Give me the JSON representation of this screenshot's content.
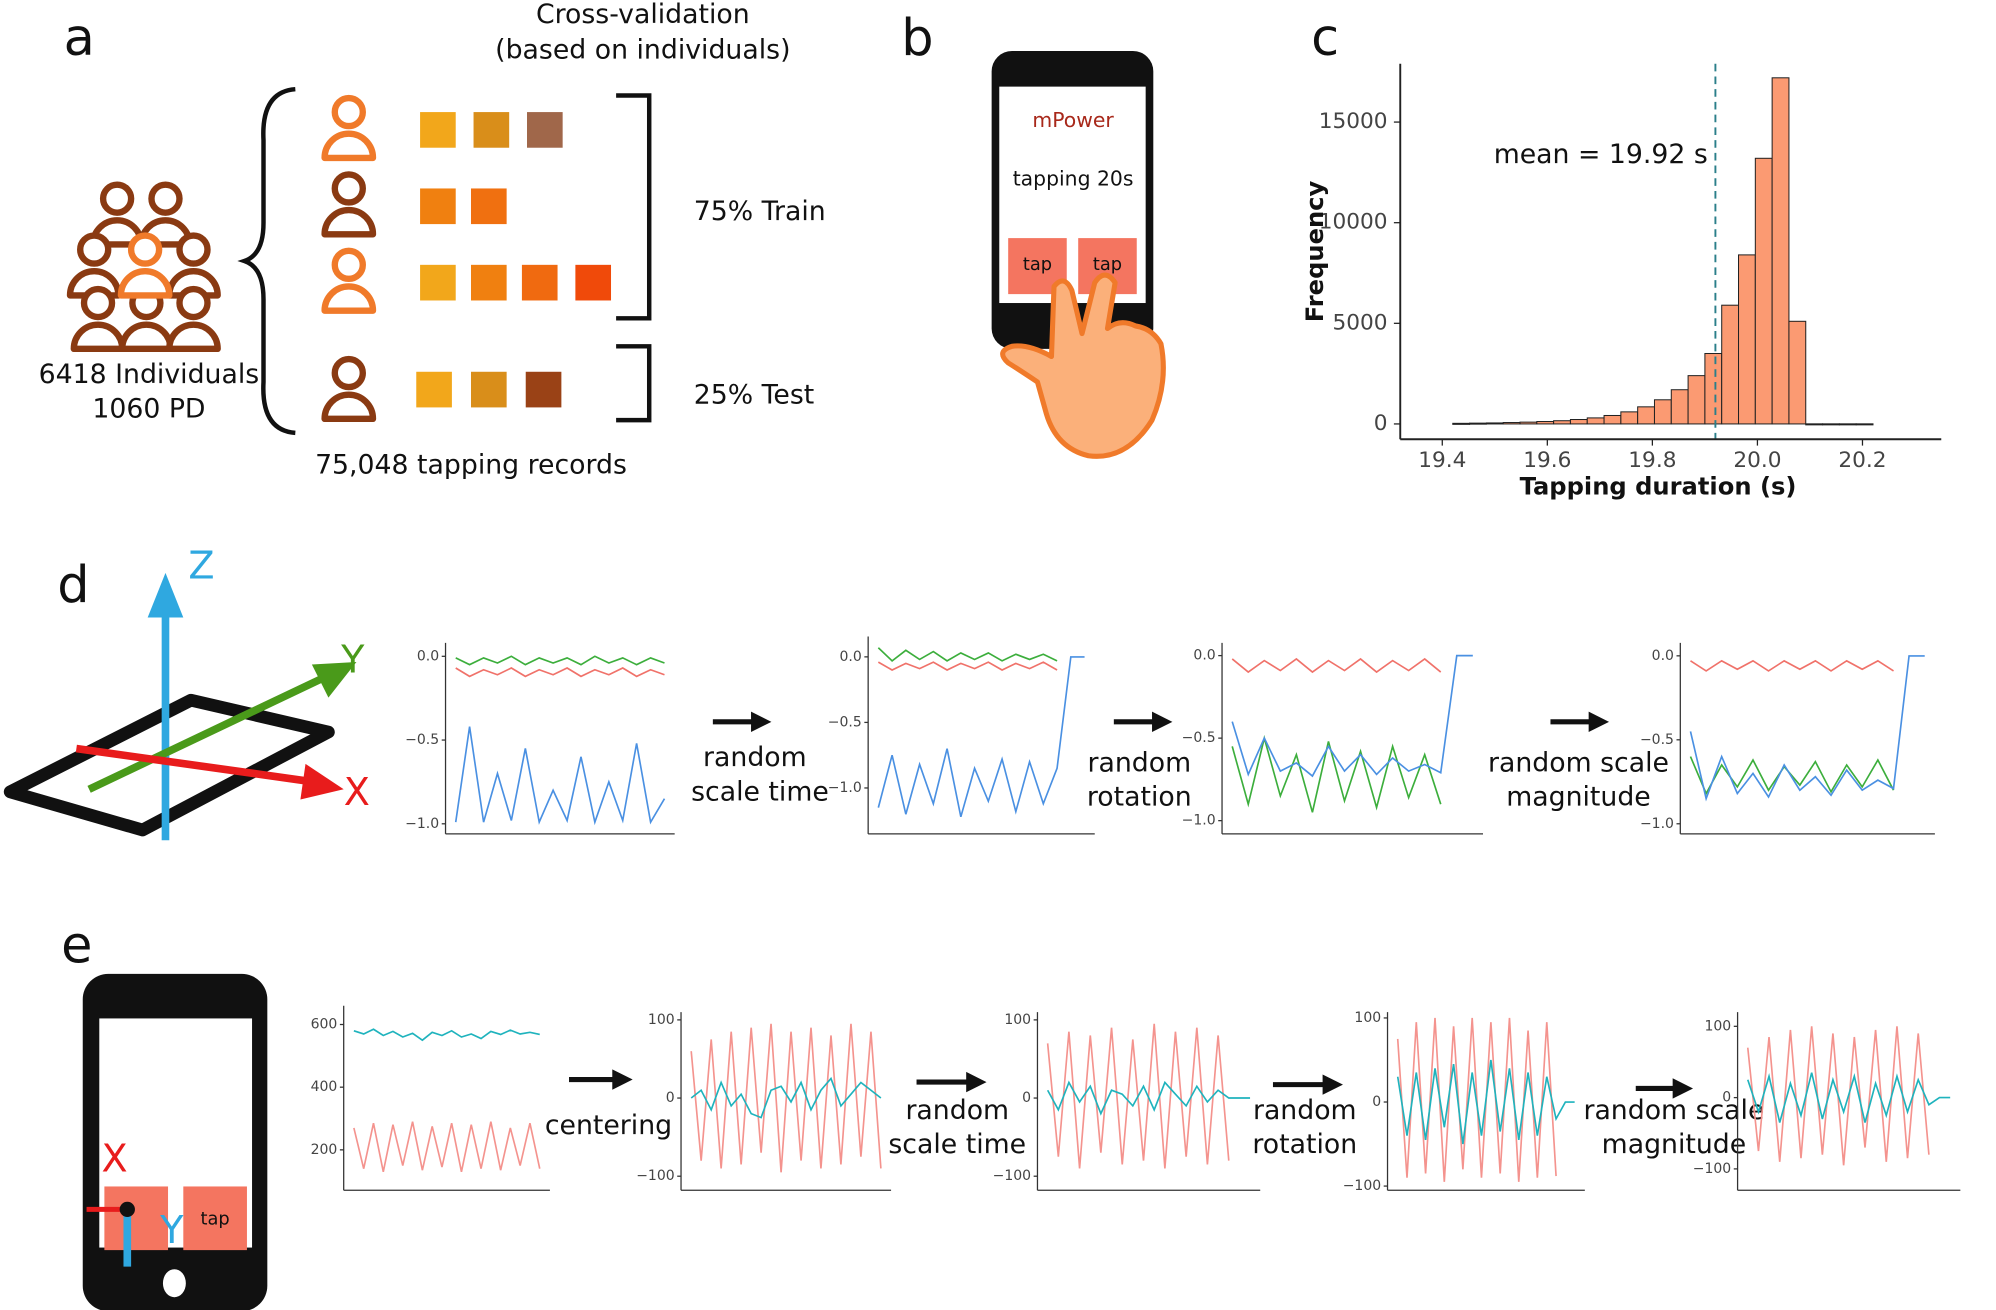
{
  "panels": {
    "a": {
      "label": "a",
      "cv_title": [
        "Cross-validation",
        "(based on individuals)"
      ],
      "train": "75% Train",
      "test": "25% Test",
      "individuals": [
        "6418 Individuals",
        "1060 PD"
      ],
      "records": "75,048 tapping records"
    },
    "b": {
      "label": "b",
      "app": "mPower",
      "task": "tapping 20s",
      "buttons": [
        "tap",
        "tap"
      ]
    },
    "c": {
      "label": "c"
    },
    "d": {
      "label": "d",
      "axes": [
        "Z",
        "Y",
        "X"
      ],
      "steps": [
        [
          "random",
          "scale time"
        ],
        [
          "random",
          "rotation"
        ],
        [
          "random scale",
          "magnitude"
        ]
      ]
    },
    "e": {
      "label": "e",
      "axes": [
        "X",
        "Y"
      ],
      "button": "tap",
      "steps": [
        [
          "centering"
        ],
        [
          "random",
          "scale time"
        ],
        [
          "random",
          "rotation"
        ],
        [
          "random scale",
          "magnitude"
        ]
      ]
    }
  },
  "chart_data": [
    {
      "type": "histogram",
      "xlabel": "Tapping duration (s)",
      "ylabel": "Frequency",
      "color": "#fb9a72",
      "bins": [
        19.42,
        19.452,
        19.484,
        19.516,
        19.548,
        19.58,
        19.612,
        19.644,
        19.676,
        19.708,
        19.74,
        19.772,
        19.804,
        19.836,
        19.868,
        19.9,
        19.932,
        19.964,
        19.996,
        20.028,
        20.06,
        20.092,
        20.124,
        20.156,
        20.188,
        20.22
      ],
      "values": [
        30,
        40,
        50,
        70,
        90,
        120,
        160,
        220,
        300,
        420,
        600,
        850,
        1200,
        1700,
        2400,
        3500,
        5900,
        8400,
        13200,
        17200,
        5100,
        5,
        5,
        5,
        5
      ],
      "xlim": [
        19.32,
        20.35
      ],
      "xticks": [
        19.4,
        19.6,
        19.8,
        {
          "value": 20,
          "label": "20.0"
        },
        20.2
      ],
      "ylim": [
        -760,
        17900
      ],
      "yticks": [
        0,
        5000,
        10000,
        15000
      ],
      "mean": 19.92,
      "mean_color": "#2a7f8a",
      "annotation": "mean = 19.92 s"
    },
    {
      "type": "line",
      "ylim": [
        -1.06,
        0.08
      ],
      "yticks": [
        {
          "value": 0,
          "label": "0.0"
        },
        {
          "value": -0.5,
          "label": "−0.5"
        },
        {
          "value": -1,
          "label": "−1.0"
        }
      ],
      "series": [
        {
          "color": "#4a90e2",
          "values": [
            -0.99,
            -0.42,
            -0.99,
            -0.7,
            -0.98,
            -0.55,
            -0.99,
            -0.8,
            -0.98,
            -0.6,
            -0.99,
            -0.75,
            -0.98,
            -0.52,
            -0.99,
            -0.85
          ]
        },
        {
          "color": "#f0726a",
          "values": [
            -0.07,
            -0.12,
            -0.08,
            -0.11,
            -0.07,
            -0.12,
            -0.08,
            -0.11,
            -0.07,
            -0.12,
            -0.08,
            -0.11,
            -0.07,
            -0.12,
            -0.08,
            -0.11
          ]
        },
        {
          "color": "#3cae3c",
          "values": [
            -0.01,
            -0.05,
            -0.01,
            -0.04,
            0.0,
            -0.05,
            -0.01,
            -0.04,
            -0.01,
            -0.05,
            0.0,
            -0.04,
            -0.01,
            -0.05,
            -0.01,
            -0.04
          ]
        }
      ]
    },
    {
      "type": "line",
      "ylim": [
        -1.35,
        0.155
      ],
      "yticks": [
        {
          "value": 0,
          "label": "0.0"
        },
        {
          "value": -0.5,
          "label": "−0.5"
        },
        {
          "value": -1,
          "label": "−1.0"
        }
      ],
      "series": [
        {
          "color": "#4a90e2",
          "values": [
            -1.15,
            -0.75,
            -1.2,
            -0.82,
            -1.12,
            -0.7,
            -1.22,
            -0.85,
            -1.1,
            -0.78,
            -1.18,
            -0.8,
            -1.12,
            -0.85,
            0.0,
            0.0
          ]
        },
        {
          "color": "#f0726a",
          "values": [
            -0.04,
            -0.1,
            -0.05,
            -0.09,
            -0.04,
            -0.1,
            -0.05,
            -0.09,
            -0.04,
            -0.1,
            -0.05,
            -0.09,
            -0.04,
            -0.1,
            null,
            null
          ]
        },
        {
          "color": "#3cae3c",
          "values": [
            0.07,
            -0.03,
            0.05,
            -0.02,
            0.04,
            -0.03,
            0.03,
            -0.02,
            0.03,
            -0.03,
            0.02,
            -0.02,
            0.02,
            -0.03,
            null,
            null
          ]
        }
      ]
    },
    {
      "type": "line",
      "ylim": [
        -1.08,
        0.077
      ],
      "yticks": [
        {
          "value": 0,
          "label": "0.0"
        },
        {
          "value": -0.5,
          "label": "−0.5"
        },
        {
          "value": -1,
          "label": "−1.0"
        }
      ],
      "series": [
        {
          "color": "#3cae3c",
          "values": [
            -0.55,
            -0.9,
            -0.5,
            -0.85,
            -0.6,
            -0.95,
            -0.52,
            -0.88,
            -0.58,
            -0.92,
            -0.55,
            -0.86,
            -0.6,
            -0.9,
            null,
            null
          ]
        },
        {
          "color": "#4a90e2",
          "values": [
            -0.4,
            -0.72,
            -0.5,
            -0.7,
            -0.65,
            -0.73,
            -0.55,
            -0.7,
            -0.6,
            -0.72,
            -0.62,
            -0.7,
            -0.66,
            -0.71,
            0.0,
            0.0
          ]
        },
        {
          "color": "#f0726a",
          "values": [
            -0.02,
            -0.1,
            -0.03,
            -0.09,
            -0.02,
            -0.1,
            -0.03,
            -0.09,
            -0.02,
            -0.1,
            -0.03,
            -0.09,
            -0.02,
            -0.1,
            null,
            null
          ]
        }
      ]
    },
    {
      "type": "line",
      "ylim": [
        -1.06,
        0.077
      ],
      "yticks": [
        {
          "value": 0,
          "label": "0.0"
        },
        {
          "value": -0.5,
          "label": "−0.5"
        },
        {
          "value": -1,
          "label": "−1.0"
        }
      ],
      "series": [
        {
          "color": "#3cae3c",
          "values": [
            -0.6,
            -0.82,
            -0.65,
            -0.78,
            -0.62,
            -0.8,
            -0.66,
            -0.77,
            -0.63,
            -0.81,
            -0.65,
            -0.78,
            -0.62,
            -0.8,
            null,
            null
          ]
        },
        {
          "color": "#4a90e2",
          "values": [
            -0.45,
            -0.85,
            -0.6,
            -0.82,
            -0.7,
            -0.84,
            -0.65,
            -0.8,
            -0.72,
            -0.83,
            -0.68,
            -0.8,
            -0.74,
            -0.79,
            0.0,
            0.0
          ]
        },
        {
          "color": "#f0726a",
          "values": [
            -0.03,
            -0.09,
            -0.03,
            -0.08,
            -0.03,
            -0.09,
            -0.03,
            -0.08,
            -0.03,
            -0.09,
            -0.03,
            -0.08,
            -0.03,
            -0.09,
            null,
            null
          ]
        }
      ]
    },
    {
      "type": "line",
      "ylim": [
        71,
        660
      ],
      "yticks": [
        600,
        400,
        200
      ],
      "series": [
        {
          "color": "#f4938e",
          "values": [
            270,
            140,
            285,
            130,
            280,
            150,
            290,
            135,
            275,
            145,
            285,
            130,
            280,
            140,
            290,
            135,
            270,
            150,
            285,
            140
          ]
        },
        {
          "color": "#1fb3bd",
          "values": [
            580,
            570,
            585,
            565,
            578,
            560,
            572,
            550,
            575,
            565,
            580,
            560,
            570,
            555,
            578,
            568,
            582,
            570,
            575,
            568
          ]
        }
      ]
    },
    {
      "type": "line",
      "ylim": [
        -118,
        110
      ],
      "yticks": [
        100,
        0,
        {
          "value": -100,
          "label": "−100"
        }
      ],
      "series": [
        {
          "color": "#f4938e",
          "values": [
            60,
            -80,
            75,
            -90,
            85,
            -85,
            90,
            -70,
            95,
            -95,
            85,
            -80,
            90,
            -90,
            80,
            -85,
            95,
            -75,
            85,
            -90
          ]
        },
        {
          "color": "#1fb3bd",
          "values": [
            0,
            10,
            -15,
            20,
            -10,
            5,
            -20,
            -25,
            10,
            15,
            -5,
            20,
            -15,
            10,
            25,
            -10,
            5,
            20,
            10,
            0
          ]
        }
      ]
    },
    {
      "type": "line",
      "ylim": [
        -118,
        110
      ],
      "yticks": [
        100,
        0,
        {
          "value": -100,
          "label": "−100"
        }
      ],
      "series": [
        {
          "color": "#f4938e",
          "values": [
            70,
            -75,
            85,
            -90,
            80,
            -70,
            90,
            -85,
            75,
            -80,
            95,
            -90,
            85,
            -75,
            90,
            -85,
            80,
            -80,
            null,
            null
          ]
        },
        {
          "color": "#1fb3bd",
          "values": [
            10,
            -15,
            20,
            -5,
            15,
            -20,
            10,
            5,
            -10,
            15,
            -15,
            20,
            5,
            -10,
            15,
            -5,
            10,
            0,
            0,
            0
          ]
        }
      ]
    },
    {
      "type": "line",
      "ylim": [
        -105,
        107
      ],
      "yticks": [
        100,
        0,
        {
          "value": -100,
          "label": "−100"
        }
      ],
      "series": [
        {
          "color": "#f4938e",
          "values": [
            75,
            -90,
            95,
            -85,
            100,
            -95,
            90,
            -80,
            100,
            -90,
            95,
            -85,
            100,
            -95,
            85,
            -90,
            95,
            -88,
            null,
            null
          ]
        },
        {
          "color": "#1fb3bd",
          "values": [
            30,
            -40,
            35,
            -45,
            40,
            -30,
            45,
            -50,
            35,
            -40,
            50,
            -35,
            40,
            -45,
            35,
            -40,
            30,
            -20,
            0,
            0
          ]
        }
      ]
    },
    {
      "type": "line",
      "ylim": [
        -130,
        120
      ],
      "yticks": [
        100,
        0,
        {
          "value": -100,
          "label": "−100"
        }
      ],
      "series": [
        {
          "color": "#f4938e",
          "values": [
            70,
            -75,
            85,
            -90,
            95,
            -85,
            100,
            -80,
            90,
            -95,
            85,
            -70,
            95,
            -90,
            100,
            -85,
            90,
            -80,
            null,
            null
          ]
        },
        {
          "color": "#1fb3bd",
          "values": [
            25,
            -20,
            30,
            -35,
            20,
            -25,
            35,
            -30,
            25,
            -20,
            30,
            -35,
            20,
            -25,
            30,
            -20,
            25,
            -10,
            0,
            0
          ]
        }
      ]
    }
  ]
}
